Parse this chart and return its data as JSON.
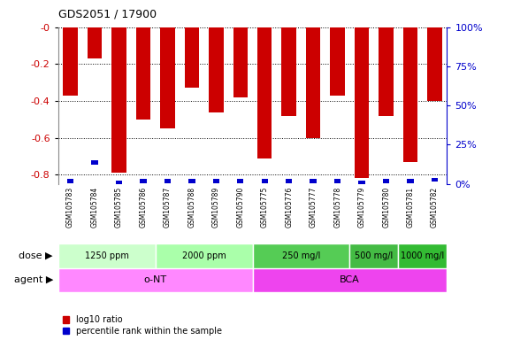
{
  "title": "GDS2051 / 17900",
  "samples": [
    "GSM105783",
    "GSM105784",
    "GSM105785",
    "GSM105786",
    "GSM105787",
    "GSM105788",
    "GSM105789",
    "GSM105790",
    "GSM105775",
    "GSM105776",
    "GSM105777",
    "GSM105778",
    "GSM105779",
    "GSM105780",
    "GSM105781",
    "GSM105782"
  ],
  "log10_ratio": [
    -0.37,
    -0.17,
    -0.79,
    -0.5,
    -0.55,
    -0.33,
    -0.46,
    -0.38,
    -0.71,
    -0.48,
    -0.6,
    -0.37,
    -0.82,
    -0.48,
    -0.73,
    -0.4
  ],
  "percentile_rank_raw": [
    3,
    15,
    2,
    3,
    3,
    3,
    3,
    3,
    3,
    3,
    3,
    3,
    2,
    3,
    3,
    4
  ],
  "bar_color": "#cc0000",
  "blue_color": "#0000cc",
  "ylim_left": [
    -0.85,
    0.0
  ],
  "ylim_right": [
    0,
    100
  ],
  "yticks_left": [
    0.0,
    -0.2,
    -0.4,
    -0.6,
    -0.8
  ],
  "yticks_right": [
    0,
    25,
    50,
    75,
    100
  ],
  "ytick_labels_left": [
    "-0",
    "-0.2",
    "-0.4",
    "-0.6",
    "-0.8"
  ],
  "ytick_labels_right": [
    "0%",
    "25%",
    "50%",
    "75%",
    "100%"
  ],
  "dose_groups": [
    {
      "label": "1250 ppm",
      "start": 0,
      "end": 3,
      "color": "#ccffcc"
    },
    {
      "label": "2000 ppm",
      "start": 4,
      "end": 7,
      "color": "#aaffaa"
    },
    {
      "label": "250 mg/l",
      "start": 8,
      "end": 11,
      "color": "#55cc55"
    },
    {
      "label": "500 mg/l",
      "start": 12,
      "end": 13,
      "color": "#44bb44"
    },
    {
      "label": "1000 mg/l",
      "start": 14,
      "end": 15,
      "color": "#33bb33"
    }
  ],
  "agent_groups": [
    {
      "label": "o-NT",
      "start": 0,
      "end": 7,
      "color": "#ff88ff"
    },
    {
      "label": "BCA",
      "start": 8,
      "end": 15,
      "color": "#ee44ee"
    }
  ],
  "dose_label": "dose",
  "agent_label": "agent",
  "legend_red": "log10 ratio",
  "legend_blue": "percentile rank within the sample",
  "tick_label_color_left": "#cc0000",
  "tick_label_color_right": "#0000cc"
}
